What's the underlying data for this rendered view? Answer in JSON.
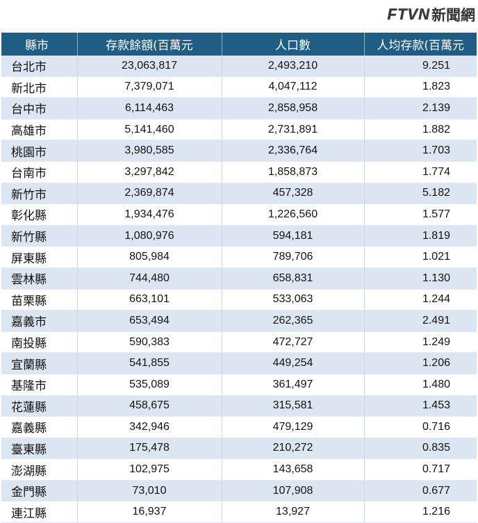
{
  "logo": {
    "mark": "FTVN",
    "name": "新聞網"
  },
  "headers": [
    "縣市",
    "存款餘額(百萬元",
    "人口數",
    "人均存款(百萬元"
  ],
  "rows": [
    [
      "台北市",
      "23,063,817",
      "2,493,210",
      "9.251"
    ],
    [
      "新北市",
      "7,379,071",
      "4,047,112",
      "1.823"
    ],
    [
      "台中市",
      "6,114,463",
      "2,858,958",
      "2.139"
    ],
    [
      "高雄市",
      "5,141,460",
      "2,731,891",
      "1.882"
    ],
    [
      "桃園市",
      "3,980,585",
      "2,336,764",
      "1.703"
    ],
    [
      "台南市",
      "3,297,842",
      "1,858,873",
      "1.774"
    ],
    [
      "新竹市",
      "2,369,874",
      "457,328",
      "5.182"
    ],
    [
      "彰化縣",
      "1,934,476",
      "1,226,560",
      "1.577"
    ],
    [
      "新竹縣",
      "1,080,976",
      "594,181",
      "1.819"
    ],
    [
      "屏東縣",
      "805,984",
      "789,706",
      "1.021"
    ],
    [
      "雲林縣",
      "744,480",
      "658,831",
      "1.130"
    ],
    [
      "苗栗縣",
      "663,101",
      "533,063",
      "1.244"
    ],
    [
      "嘉義市",
      "653,494",
      "262,365",
      "2.491"
    ],
    [
      "南投縣",
      "590,383",
      "472,727",
      "1.249"
    ],
    [
      "宜蘭縣",
      "541,855",
      "449,254",
      "1.206"
    ],
    [
      "基隆市",
      "535,089",
      "361,497",
      "1.480"
    ],
    [
      "花蓮縣",
      "458,675",
      "315,581",
      "1.453"
    ],
    [
      "嘉義縣",
      "342,946",
      "479,129",
      "0.716"
    ],
    [
      "臺東縣",
      "175,478",
      "210,272",
      "0.835"
    ],
    [
      "澎湖縣",
      "102,975",
      "143,658",
      "0.717"
    ],
    [
      "金門縣",
      "73,010",
      "107,908",
      "0.677"
    ],
    [
      "連江縣",
      "16,937",
      "13,927",
      "1.216"
    ]
  ]
}
